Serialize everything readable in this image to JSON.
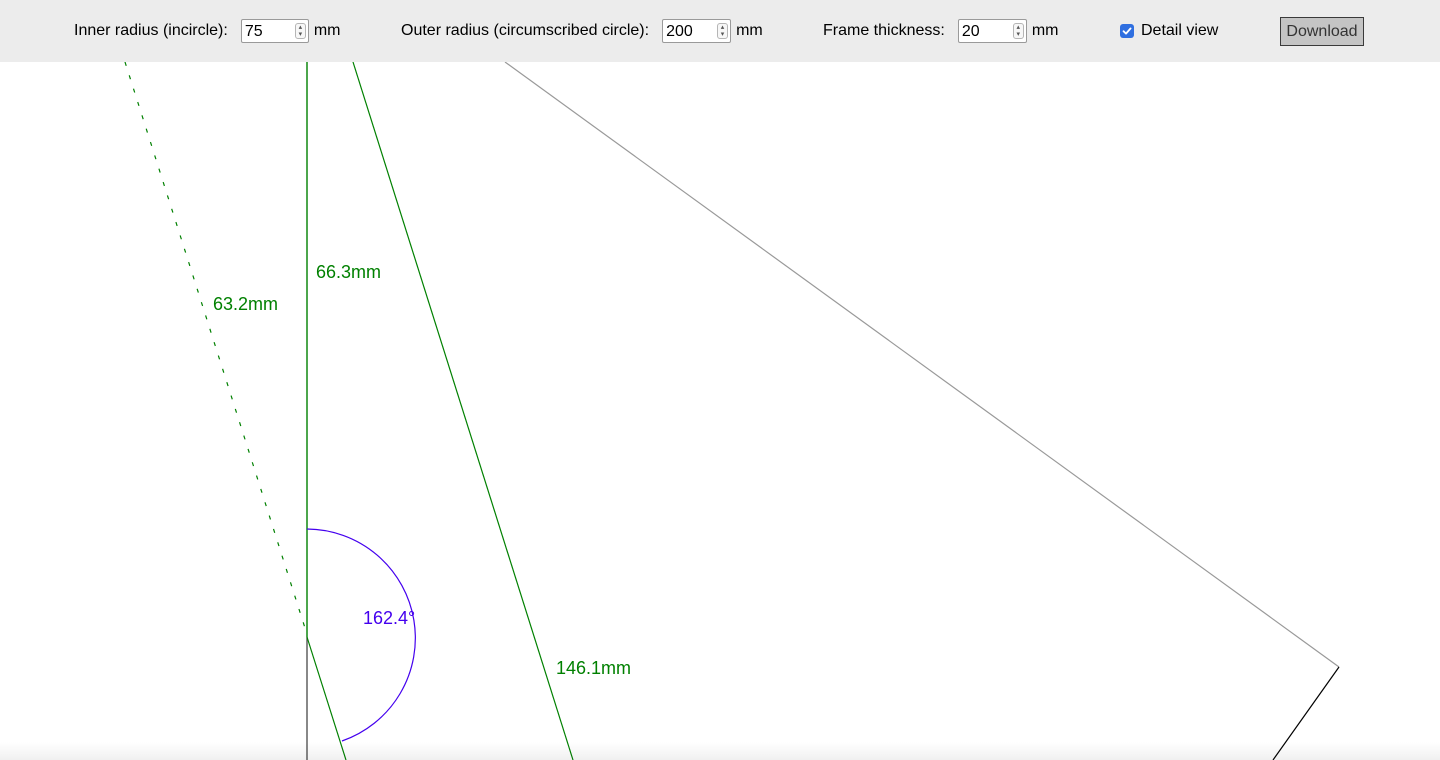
{
  "toolbar": {
    "inner_radius": {
      "label": "Inner radius (incircle):",
      "value": "75",
      "unit": "mm"
    },
    "outer_radius": {
      "label": "Outer radius (circumscribed circle):",
      "value": "200",
      "unit": "mm"
    },
    "frame_thickness": {
      "label": "Frame thickness:",
      "value": "20",
      "unit": "mm"
    },
    "detail_view": {
      "label": "Detail view",
      "checked": true
    },
    "download_label": "Download"
  },
  "drawing": {
    "label_63": "63.2mm",
    "label_66": "66.3mm",
    "label_146": "146.1mm",
    "angle_label": "162.4°",
    "colors": {
      "dimension": "#008000",
      "angle": "#4400ee",
      "outline": "#999999",
      "edge": "#000000"
    }
  }
}
